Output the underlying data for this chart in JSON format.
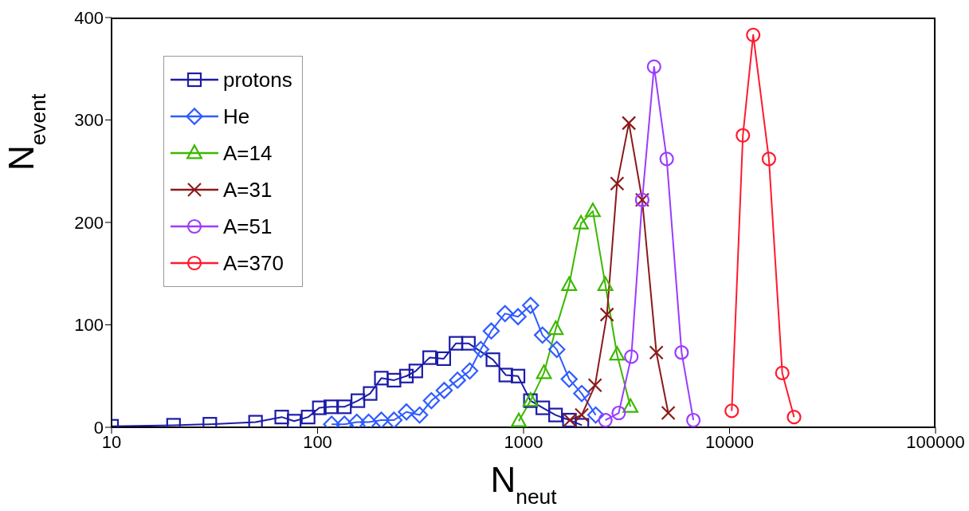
{
  "chart_data": {
    "type": "line",
    "xlabel": "N$_{neut}$",
    "ylabel": "N$_{event}$",
    "log": "x",
    "xlim": [
      10,
      100000
    ],
    "xticks": [
      10,
      100,
      1000,
      10000,
      100000
    ],
    "ylim": [
      0,
      400
    ],
    "yticks": [
      0,
      100,
      200,
      300,
      400
    ],
    "legend": "top left",
    "series": [
      {
        "name": "protons",
        "color": "#1c1ca8",
        "marker": "square",
        "x": [
          10,
          20,
          30,
          50,
          67,
          77,
          90,
          102,
          116,
          135,
          157,
          180,
          204,
          235,
          270,
          300,
          350,
          410,
          470,
          540,
          710,
          820,
          940,
          1080,
          1240,
          1430,
          1670,
          1920
        ],
        "values": [
          1,
          2,
          3,
          5,
          10,
          6,
          10,
          19,
          20,
          20,
          26,
          33,
          48,
          46,
          50,
          55,
          68,
          67,
          82,
          82,
          66,
          51,
          50,
          26,
          19,
          12,
          7,
          2
        ]
      },
      {
        "name": "He",
        "color": "#2f5cff",
        "marker": "diamond",
        "x": [
          117,
          135,
          155,
          177,
          204,
          235,
          270,
          313,
          357,
          412,
          478,
          548,
          620,
          697,
          813,
          940,
          1082,
          1235,
          1450,
          1665,
          1916,
          2240
        ],
        "values": [
          3,
          3,
          5,
          5,
          7,
          7,
          15,
          12,
          26,
          36,
          46,
          55,
          76,
          94,
          111,
          108,
          119,
          90,
          76,
          47,
          33,
          12
        ]
      },
      {
        "name": "A=14",
        "color": "#3cb800",
        "marker": "triangle",
        "x": [
          948,
          1082,
          1256,
          1433,
          1665,
          1900,
          2170,
          2496,
          2845,
          3304
        ],
        "values": [
          6,
          26,
          53,
          96,
          139,
          199,
          211,
          139,
          71,
          20
        ]
      },
      {
        "name": "A=31",
        "color": "#8b1a1a",
        "marker": "cross",
        "x": [
          1680,
          1916,
          2224,
          2540,
          2845,
          3246,
          3768,
          4413,
          5040
        ],
        "values": [
          7,
          12,
          41,
          110,
          238,
          297,
          222,
          73,
          14
        ]
      },
      {
        "name": "A=51",
        "color": "#9a3cff",
        "marker": "circle",
        "x": [
          2496,
          2897,
          3336,
          3768,
          4302,
          4955,
          5852,
          6675
        ],
        "values": [
          7,
          14,
          69,
          222,
          352,
          262,
          73,
          7
        ]
      },
      {
        "name": "A=370",
        "color": "#ff1a2e",
        "marker": "circle",
        "x": [
          10250,
          11610,
          13030,
          15530,
          18030,
          20570
        ],
        "values": [
          16,
          285,
          383,
          262,
          53,
          10
        ]
      }
    ]
  }
}
